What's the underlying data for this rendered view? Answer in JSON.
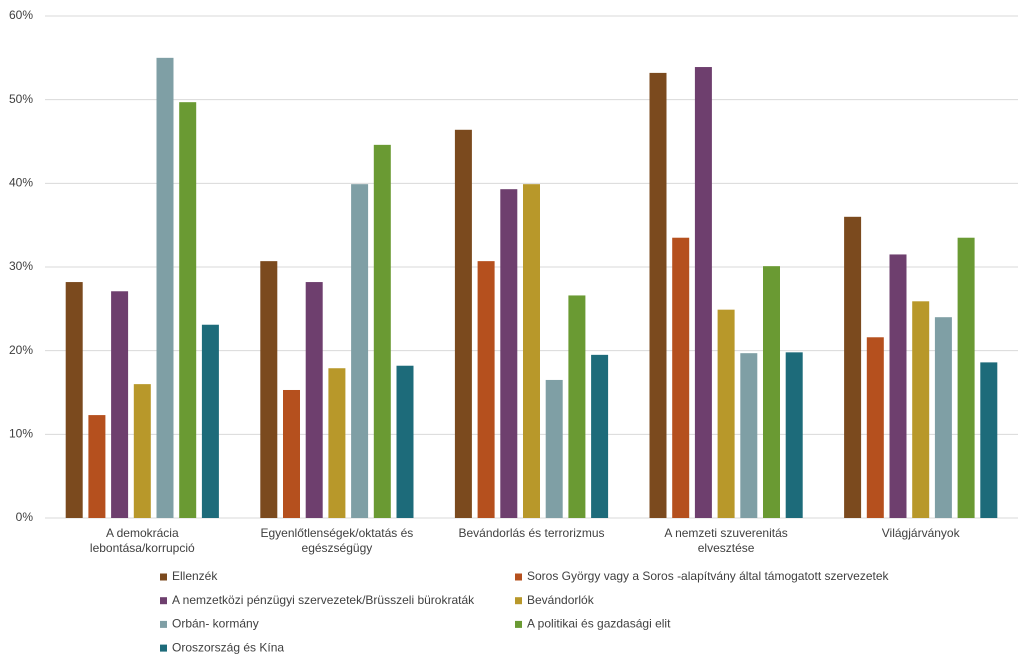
{
  "chart_data": {
    "type": "bar",
    "categories": [
      "A demokrácia lebontása/korrupció",
      "Egyenlőtlenségek/oktatás és egészségügy",
      "Bevándorlás és terrorizmus",
      "A nemzeti szuverenitás elvesztése",
      "Világjárványok"
    ],
    "series": [
      {
        "name": "Ellenzék",
        "color": "#7b4a1e",
        "values": [
          28.2,
          30.7,
          46.4,
          53.2,
          36.0
        ]
      },
      {
        "name": "Soros György vagy a Soros -alapítvány által támogatott szervezetek",
        "color": "#b5501e",
        "values": [
          12.3,
          15.3,
          30.7,
          33.5,
          21.6
        ]
      },
      {
        "name": "A nemzetközi pénzügyi szervezetek/Brüsszeli bürokraták",
        "color": "#6e3f6e",
        "values": [
          27.1,
          28.2,
          39.3,
          53.9,
          31.5
        ]
      },
      {
        "name": "Bevándorlók",
        "color": "#b8982a",
        "values": [
          16.0,
          17.9,
          39.9,
          24.9,
          25.9
        ]
      },
      {
        "name": "Orbán- kormány",
        "color": "#7f9fa5",
        "values": [
          55.0,
          39.9,
          16.5,
          19.7,
          24.0
        ]
      },
      {
        "name": "A politikai és gazdasági elit",
        "color": "#6a9a33",
        "values": [
          49.7,
          44.6,
          26.6,
          30.1,
          33.5
        ]
      },
      {
        "name": "Oroszország és Kína",
        "color": "#1d6b7a",
        "values": [
          23.1,
          18.2,
          19.5,
          19.8,
          18.6
        ]
      }
    ],
    "ylim": [
      0,
      60
    ],
    "yticks": [
      {
        "value": 0,
        "label": "0%"
      },
      {
        "value": 10,
        "label": "10%"
      },
      {
        "value": 20,
        "label": "20%"
      },
      {
        "value": 30,
        "label": "30%"
      },
      {
        "value": 40,
        "label": "40%"
      },
      {
        "value": 50,
        "label": "50%"
      },
      {
        "value": 60,
        "label": "60%"
      }
    ],
    "grid": true
  }
}
